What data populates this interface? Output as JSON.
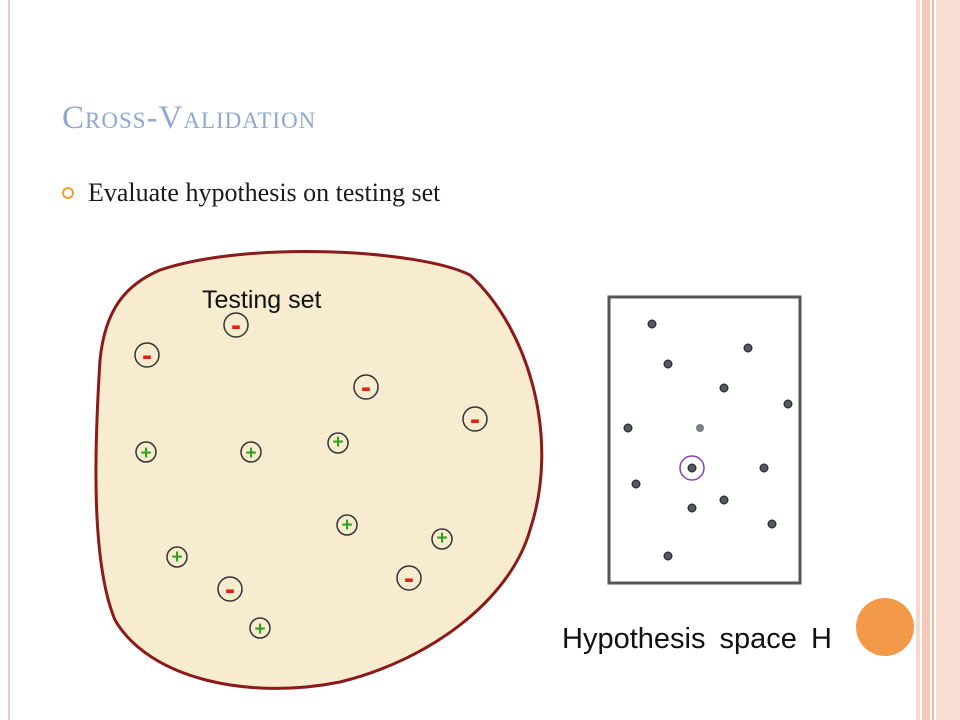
{
  "slide": {
    "title": "Cross-Validation",
    "bullet": "Evaluate hypothesis on testing set"
  },
  "diagram": {
    "testing_set_label": "Testing set",
    "hypothesis_label": "Hypothesis space H",
    "negative_symbol": "-",
    "positive_symbol": "+",
    "colors": {
      "blob_fill": "#f8ecd0",
      "blob_stroke": "#8b1a1a",
      "negative": "#e02010",
      "positive": "#30a020",
      "dot": "#505860",
      "highlight_ring": "#9040b0",
      "orange_circle": "#f39a4a"
    }
  }
}
